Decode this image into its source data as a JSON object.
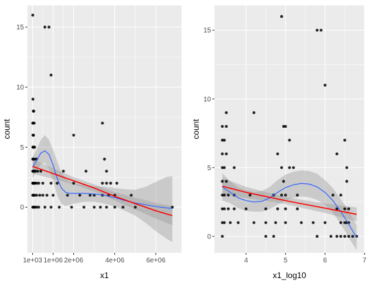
{
  "figure": {
    "background": "#ffffff",
    "panel_background": "#ebebeb",
    "grid_color": "#ffffff",
    "point_color": "#000000",
    "loess_color": "#3366ff",
    "lm_color": "#ff0000",
    "ribbon_color": "#999999"
  },
  "chart_data": [
    {
      "type": "scatter",
      "title": "",
      "xlabel": "x1",
      "ylabel": "count",
      "xlim": [
        -250000,
        7250000
      ],
      "ylim": [
        -3.8,
        16.8
      ],
      "grid": true,
      "x_ticks": [
        {
          "value": 1000,
          "label": "1e+03"
        },
        {
          "value": 1000000,
          "label": "1e+06"
        },
        {
          "value": 2000000,
          "label": "2e+06"
        },
        {
          "value": 4000000,
          "label": "4e+06"
        },
        {
          "value": 6000000,
          "label": "6e+06"
        }
      ],
      "y_ticks": [
        0,
        5,
        10,
        15
      ],
      "points": [
        [
          10000,
          16
        ],
        [
          600000,
          15
        ],
        [
          800000,
          15
        ],
        [
          900000,
          11
        ],
        [
          20000,
          9
        ],
        [
          40000,
          8
        ],
        [
          60000,
          8
        ],
        [
          10000,
          7
        ],
        [
          30000,
          7
        ],
        [
          80000,
          7
        ],
        [
          20000,
          6
        ],
        [
          50000,
          6
        ],
        [
          2000000,
          6
        ],
        [
          3400000,
          7
        ],
        [
          15000,
          5
        ],
        [
          30000,
          5
        ],
        [
          70000,
          5
        ],
        [
          100000,
          5
        ],
        [
          3500000,
          4
        ],
        [
          10000,
          4
        ],
        [
          40000,
          4
        ],
        [
          120000,
          4
        ],
        [
          200000,
          4
        ],
        [
          10000,
          3
        ],
        [
          30000,
          3
        ],
        [
          60000,
          3
        ],
        [
          90000,
          3
        ],
        [
          150000,
          3
        ],
        [
          250000,
          3
        ],
        [
          400000,
          3
        ],
        [
          1500000,
          3
        ],
        [
          2600000,
          3
        ],
        [
          3600000,
          3
        ],
        [
          10000,
          2
        ],
        [
          20000,
          2
        ],
        [
          50000,
          2
        ],
        [
          80000,
          2
        ],
        [
          120000,
          2
        ],
        [
          200000,
          2
        ],
        [
          300000,
          2
        ],
        [
          500000,
          2
        ],
        [
          900000,
          2
        ],
        [
          1200000,
          2
        ],
        [
          2000000,
          2
        ],
        [
          3400000,
          2
        ],
        [
          3600000,
          2
        ],
        [
          3800000,
          2
        ],
        [
          4100000,
          2
        ],
        [
          10000,
          1
        ],
        [
          30000,
          1
        ],
        [
          60000,
          1
        ],
        [
          100000,
          1
        ],
        [
          200000,
          1
        ],
        [
          350000,
          1
        ],
        [
          500000,
          1
        ],
        [
          700000,
          1
        ],
        [
          1000000,
          1
        ],
        [
          1700000,
          1
        ],
        [
          2300000,
          1
        ],
        [
          2800000,
          1
        ],
        [
          3000000,
          1
        ],
        [
          3400000,
          1
        ],
        [
          3700000,
          1
        ],
        [
          4000000,
          1
        ],
        [
          4800000,
          1
        ],
        [
          10000,
          0
        ],
        [
          40000,
          0
        ],
        [
          80000,
          0
        ],
        [
          120000,
          0
        ],
        [
          200000,
          0
        ],
        [
          300000,
          0
        ],
        [
          600000,
          0
        ],
        [
          900000,
          0
        ],
        [
          1300000,
          0
        ],
        [
          1900000,
          0
        ],
        [
          2500000,
          0
        ],
        [
          3000000,
          0
        ],
        [
          3300000,
          0
        ],
        [
          3600000,
          0
        ],
        [
          4000000,
          0
        ],
        [
          4400000,
          0
        ],
        [
          5000000,
          0
        ],
        [
          6800000,
          0
        ]
      ],
      "smooths": [
        {
          "method": "loess",
          "color": "#3366ff",
          "x": [
            1000,
            200000,
            400000,
            600000,
            800000,
            1000000,
            1200000,
            1400000,
            1600000,
            1800000,
            2000000,
            2500000,
            3000000,
            3500000,
            4000000,
            4500000,
            5000000,
            5500000,
            6000000,
            6500000,
            6800000
          ],
          "y": [
            3.3,
            3.9,
            4.5,
            4.7,
            4.4,
            3.5,
            2.4,
            1.6,
            1.25,
            1.15,
            1.15,
            1.15,
            1.1,
            1.0,
            0.8,
            0.55,
            0.35,
            0.2,
            0.05,
            -0.05,
            -0.1
          ],
          "lower": [
            2.4,
            3.0,
            3.6,
            3.7,
            3.2,
            2.2,
            1.0,
            0.3,
            0.1,
            0.2,
            0.3,
            0.45,
            0.45,
            0.3,
            0.05,
            -0.3,
            -0.7,
            -1.3,
            -2.0,
            -2.6,
            -2.9
          ],
          "upper": [
            4.2,
            4.8,
            5.6,
            6.0,
            5.6,
            4.8,
            3.8,
            2.9,
            2.4,
            2.1,
            2.0,
            1.85,
            1.75,
            1.7,
            1.6,
            1.5,
            1.45,
            1.7,
            2.1,
            2.5,
            2.6
          ]
        },
        {
          "method": "lm",
          "color": "#ff0000",
          "x": [
            1000,
            1000000,
            2000000,
            3000000,
            4000000,
            5000000,
            6000000,
            6800000
          ],
          "y": [
            3.4,
            2.8,
            2.2,
            1.6,
            0.9,
            0.3,
            -0.3,
            -0.7
          ],
          "lower": [
            2.8,
            2.35,
            1.9,
            1.3,
            0.55,
            -0.2,
            -0.95,
            -1.5
          ],
          "upper": [
            4.0,
            3.25,
            2.5,
            1.9,
            1.25,
            0.8,
            0.35,
            0.1
          ]
        }
      ]
    },
    {
      "type": "scatter",
      "title": "",
      "xlabel": "x1_log10",
      "ylabel": "count",
      "xlim": [
        3.2,
        7.0
      ],
      "ylim": [
        -1.2,
        16.8
      ],
      "grid": true,
      "x_ticks": [
        {
          "value": 4,
          "label": "4"
        },
        {
          "value": 5,
          "label": "5"
        },
        {
          "value": 6,
          "label": "6"
        },
        {
          "value": 7,
          "label": "7"
        }
      ],
      "y_ticks": [
        0,
        5,
        10,
        15
      ],
      "points": [
        [
          4.9,
          16
        ],
        [
          5.8,
          15
        ],
        [
          5.9,
          15
        ],
        [
          6.0,
          11
        ],
        [
          3.5,
          9
        ],
        [
          4.2,
          9
        ],
        [
          3.4,
          8
        ],
        [
          3.5,
          8
        ],
        [
          4.95,
          8
        ],
        [
          5.0,
          8
        ],
        [
          6.5,
          7
        ],
        [
          3.4,
          7
        ],
        [
          3.45,
          7
        ],
        [
          5.1,
          7
        ],
        [
          3.4,
          6
        ],
        [
          3.5,
          6
        ],
        [
          4.8,
          6
        ],
        [
          6.3,
          6
        ],
        [
          3.4,
          5
        ],
        [
          3.45,
          5
        ],
        [
          4.9,
          5
        ],
        [
          5.1,
          5
        ],
        [
          5.2,
          5
        ],
        [
          6.55,
          5
        ],
        [
          3.7,
          5
        ],
        [
          3.4,
          4
        ],
        [
          3.5,
          4
        ],
        [
          4.95,
          4
        ],
        [
          6.55,
          4
        ],
        [
          3.4,
          3
        ],
        [
          3.45,
          3
        ],
        [
          3.55,
          3
        ],
        [
          3.7,
          3
        ],
        [
          4.1,
          3
        ],
        [
          4.7,
          3
        ],
        [
          4.9,
          3
        ],
        [
          5.0,
          3
        ],
        [
          5.3,
          3
        ],
        [
          6.2,
          3
        ],
        [
          6.4,
          3
        ],
        [
          3.4,
          2
        ],
        [
          3.45,
          2
        ],
        [
          3.55,
          2
        ],
        [
          3.7,
          2
        ],
        [
          4.0,
          2
        ],
        [
          4.5,
          2
        ],
        [
          4.8,
          2
        ],
        [
          5.0,
          2
        ],
        [
          5.3,
          2
        ],
        [
          6.3,
          2
        ],
        [
          6.5,
          2
        ],
        [
          6.6,
          2
        ],
        [
          3.4,
          1
        ],
        [
          3.45,
          1
        ],
        [
          3.6,
          1
        ],
        [
          3.8,
          1
        ],
        [
          4.2,
          1
        ],
        [
          4.5,
          1
        ],
        [
          4.75,
          1
        ],
        [
          5.0,
          1
        ],
        [
          5.4,
          1
        ],
        [
          5.7,
          1
        ],
        [
          6.0,
          1
        ],
        [
          6.4,
          1
        ],
        [
          6.5,
          1
        ],
        [
          6.55,
          1
        ],
        [
          6.6,
          1
        ],
        [
          3.4,
          0
        ],
        [
          4.5,
          0
        ],
        [
          4.7,
          0
        ],
        [
          5.8,
          0
        ],
        [
          6.15,
          0
        ],
        [
          6.3,
          0
        ],
        [
          6.4,
          0
        ],
        [
          6.5,
          0
        ],
        [
          6.6,
          0
        ],
        [
          6.7,
          0
        ],
        [
          6.8,
          0
        ]
      ],
      "smooths": [
        {
          "method": "loess",
          "color": "#3366ff",
          "x": [
            3.4,
            3.6,
            3.8,
            4.0,
            4.2,
            4.4,
            4.6,
            4.8,
            5.0,
            5.2,
            5.4,
            5.6,
            5.8,
            6.0,
            6.2,
            6.4,
            6.6,
            6.8
          ],
          "y": [
            3.6,
            3.2,
            2.8,
            2.6,
            2.5,
            2.55,
            2.8,
            3.2,
            3.55,
            3.75,
            3.85,
            3.8,
            3.6,
            3.2,
            2.6,
            1.8,
            0.9,
            -0.1
          ],
          "lower": [
            2.6,
            2.4,
            2.05,
            1.85,
            1.8,
            1.8,
            2.0,
            2.3,
            2.6,
            2.8,
            2.9,
            2.85,
            2.65,
            2.3,
            1.7,
            0.9,
            -0.1,
            -1.0
          ],
          "upper": [
            4.6,
            4.0,
            3.55,
            3.35,
            3.2,
            3.3,
            3.6,
            4.1,
            4.5,
            4.7,
            4.8,
            4.75,
            4.55,
            4.1,
            3.5,
            2.7,
            1.9,
            0.8
          ]
        },
        {
          "method": "lm",
          "color": "#ff0000",
          "x": [
            3.4,
            4.0,
            5.0,
            6.0,
            6.8
          ],
          "y": [
            3.65,
            3.2,
            2.6,
            2.05,
            1.6
          ],
          "lower": [
            3.05,
            2.8,
            2.35,
            1.7,
            1.1
          ],
          "upper": [
            4.25,
            3.6,
            2.85,
            2.4,
            2.1
          ]
        }
      ]
    }
  ]
}
